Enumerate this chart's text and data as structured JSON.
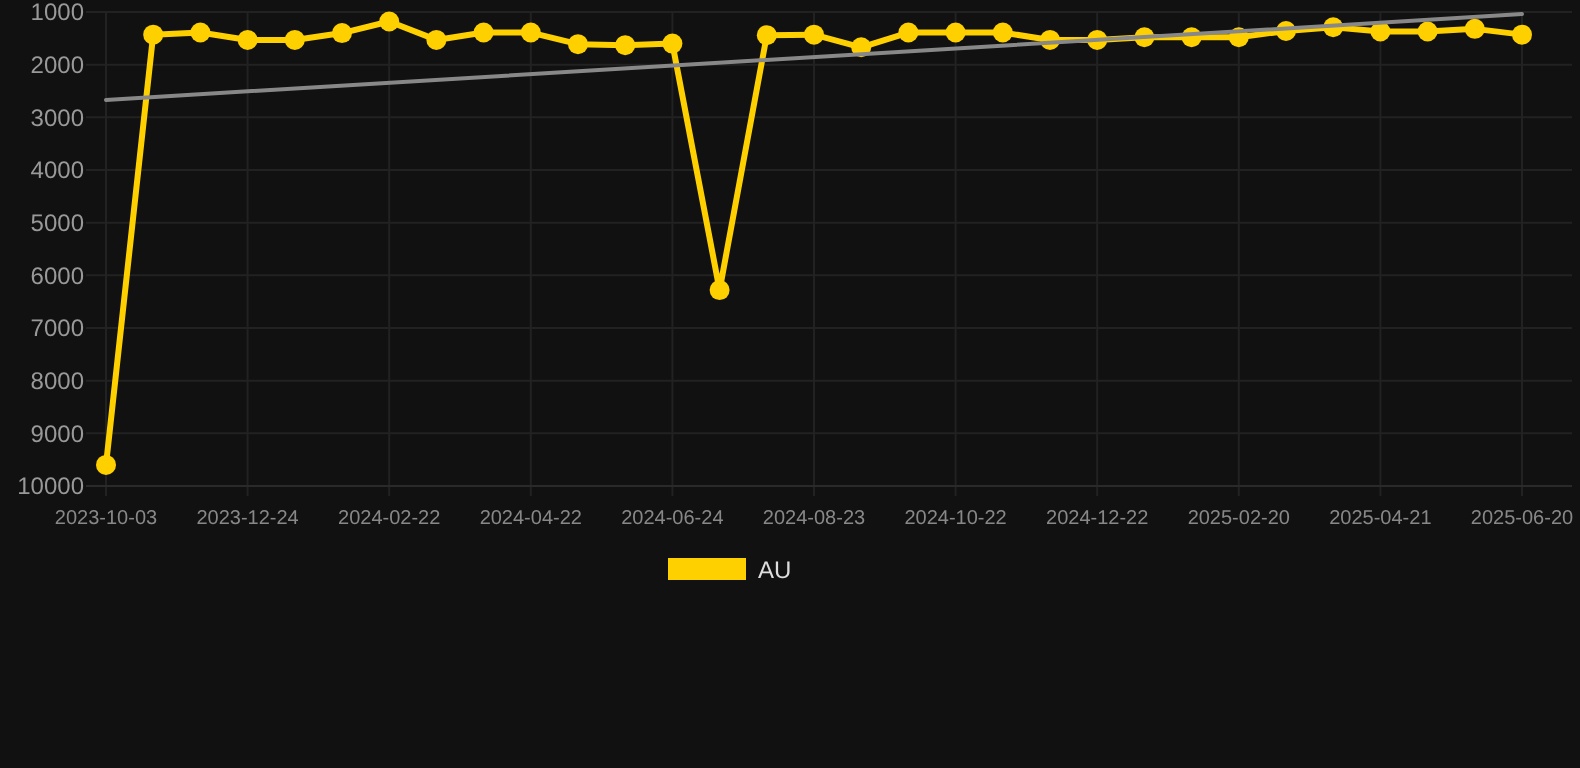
{
  "chart_data": {
    "type": "line",
    "categories": [
      "2023-10-03",
      null,
      null,
      "2023-12-24",
      null,
      null,
      "2024-02-22",
      null,
      null,
      "2024-04-22",
      null,
      null,
      "2024-06-24",
      null,
      null,
      "2024-08-23",
      null,
      null,
      "2024-10-22",
      null,
      null,
      "2024-12-22",
      null,
      null,
      "2025-02-20",
      null,
      null,
      "2025-04-21",
      null,
      null,
      "2025-06-20"
    ],
    "series": [
      {
        "name": "AU",
        "color": "#ffd000",
        "marker": "circle",
        "values": [
          9600,
          1430,
          1390,
          1530,
          1530,
          1400,
          1180,
          1530,
          1390,
          1390,
          1610,
          1630,
          1600,
          6280,
          1440,
          1430,
          1670,
          1390,
          1390,
          1390,
          1530,
          1530,
          1480,
          1480,
          1480,
          1360,
          1290,
          1370,
          1370,
          1320,
          1430
        ]
      },
      {
        "type": "line",
        "color": "#888888",
        "marker": "none",
        "values": [
          2670,
          null,
          null,
          null,
          null,
          null,
          null,
          null,
          null,
          null,
          null,
          null,
          null,
          null,
          null,
          null,
          null,
          null,
          null,
          null,
          null,
          null,
          null,
          null,
          null,
          null,
          null,
          null,
          null,
          null,
          1040
        ]
      }
    ],
    "ylim": [
      10000,
      1000
    ],
    "yticks": [
      1000,
      2000,
      3000,
      4000,
      5000,
      6000,
      7000,
      8000,
      9000,
      10000
    ],
    "grid": true,
    "legend": "bottom",
    "line_style": "solid"
  }
}
